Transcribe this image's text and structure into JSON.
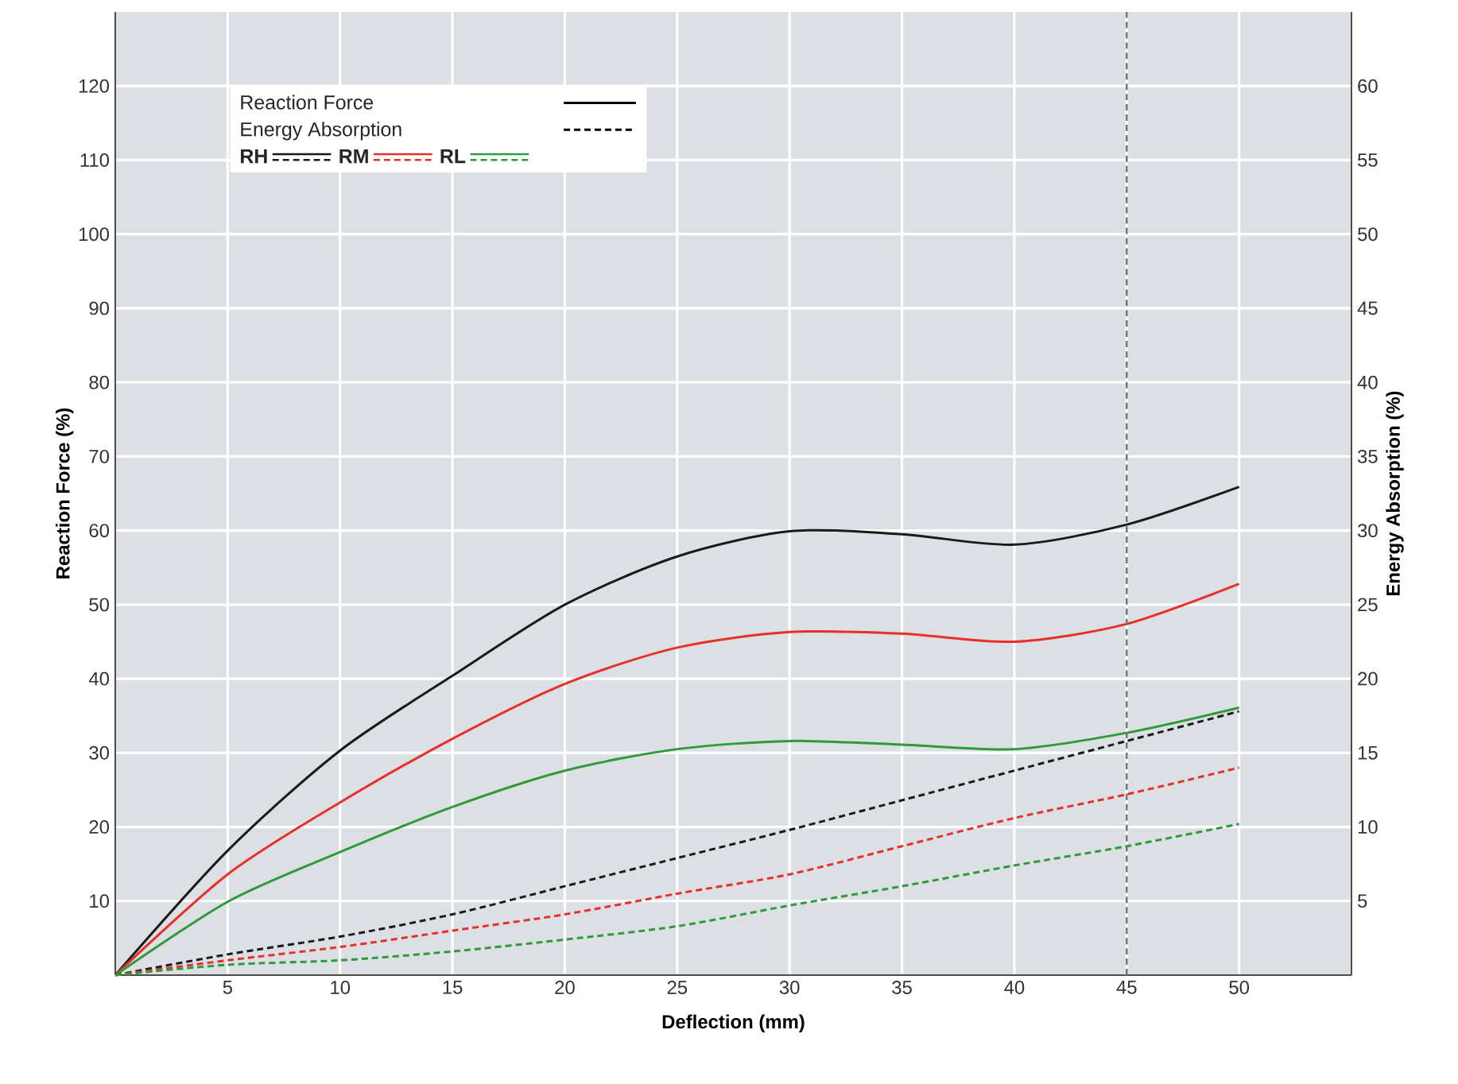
{
  "chart_data": {
    "type": "line",
    "xlabel": "Deflection (mm)",
    "ylabel": "Reaction Force (%)",
    "y2label": "Energy Absorption (%)",
    "annotations": [
      "Reaction Force",
      "Energy Absorption"
    ],
    "x": [
      0,
      5,
      10,
      15,
      20,
      25,
      30,
      35,
      40,
      45,
      50
    ],
    "series": [
      {
        "name": "RH",
        "color": "#1a1a1a",
        "line_style": "solid",
        "values": [
          0,
          16.8,
          30.3,
          40.4,
          50,
          56.5,
          59.9,
          59.5,
          58.1,
          60.8,
          65.9
        ]
      },
      {
        "name": "RM",
        "color": "#e8302a",
        "line_style": "solid",
        "values": [
          0,
          13.6,
          23.3,
          31.9,
          39.3,
          44.2,
          46.3,
          46.1,
          45,
          47.4,
          52.8
        ]
      },
      {
        "name": "RL",
        "color": "#2e9a3a",
        "line_style": "solid",
        "values": [
          0,
          9.9,
          16.6,
          22.7,
          27.6,
          30.5,
          31.6,
          31.1,
          30.5,
          32.7,
          36.1
        ]
      },
      {
        "color": "#1a1a1a",
        "line_style": "dashed",
        "axis": "y2",
        "values": [
          0,
          1.4,
          2.6,
          4.1,
          6,
          7.9,
          9.8,
          11.8,
          13.8,
          15.8,
          17.8
        ]
      },
      {
        "color": "#e8302a",
        "line_style": "dashed",
        "axis": "y2",
        "values": [
          0,
          1,
          1.9,
          3,
          4.1,
          5.5,
          6.8,
          8.7,
          10.6,
          12.2,
          14
        ]
      },
      {
        "color": "#2e9a3a",
        "line_style": "dashed",
        "axis": "y2",
        "values": [
          0,
          0.7,
          1,
          1.6,
          2.4,
          3.3,
          4.7,
          6,
          7.4,
          8.7,
          10.2
        ]
      }
    ],
    "xlim": [
      0,
      55
    ],
    "ylim": [
      0,
      130
    ],
    "y2lim": [
      0,
      65
    ],
    "xticks": [
      5,
      10,
      15,
      20,
      25,
      30,
      35,
      40,
      45,
      50
    ],
    "yticks": [
      10,
      20,
      30,
      40,
      50,
      60,
      70,
      80,
      90,
      100,
      110,
      120
    ],
    "y2ticks": [
      5,
      10,
      15,
      20,
      25,
      30,
      35,
      40,
      45,
      50,
      55,
      60
    ],
    "ref_lines": [
      {
        "axis": "x",
        "value": 45,
        "color": "#777777",
        "line_style": "dashed"
      }
    ],
    "grid": true,
    "legend": "top left",
    "marker": "none"
  }
}
